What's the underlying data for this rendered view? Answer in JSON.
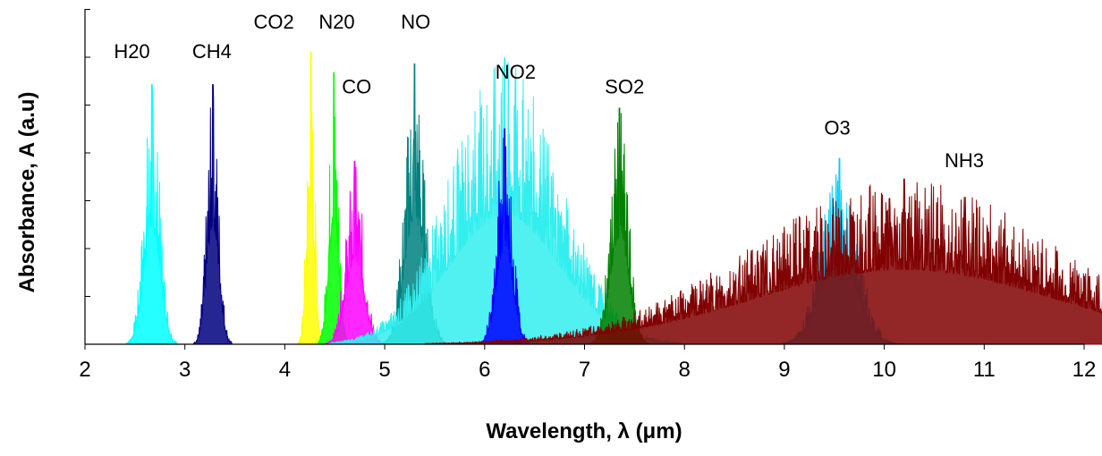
{
  "chart_data": {
    "type": "line",
    "title": "",
    "xlabel": "Wavelength, λ (μm)",
    "ylabel": "Absorbance, A (a.u)",
    "xlim": [
      2,
      12
    ],
    "ylim": [
      0,
      1
    ],
    "x_ticks": [
      "2",
      "3",
      "4",
      "5",
      "6",
      "7",
      "8",
      "9",
      "10",
      "11",
      "12"
    ],
    "grid": false,
    "legend": "none",
    "series": [
      {
        "name": "H20",
        "color": "#00FFFF",
        "center": 2.67,
        "width": 0.08,
        "peak": 0.88
      },
      {
        "name": "CH4",
        "color": "#000080",
        "center": 3.28,
        "width": 0.06,
        "peak": 0.88
      },
      {
        "name": "CO2",
        "color": "#FFFF00",
        "center": 4.26,
        "width": 0.04,
        "peak": 0.99
      },
      {
        "name": "N20",
        "color": "#00FF00",
        "center": 4.49,
        "width": 0.05,
        "peak": 0.92
      },
      {
        "name": "CO",
        "color": "#FF00FF",
        "center": 4.7,
        "width": 0.09,
        "peak": 0.62
      },
      {
        "name": "NO",
        "color": "#008080",
        "center": 5.3,
        "width": 0.1,
        "peak": 0.95
      },
      {
        "name": "NO2",
        "color": "#33EEEE",
        "center": 6.2,
        "width": 0.55,
        "peak": 0.97
      },
      {
        "name": "NO2",
        "color": "#0000FF",
        "center": 6.2,
        "width": 0.08,
        "peak": 0.73
      },
      {
        "name": "SO2",
        "color": "#008000",
        "center": 7.35,
        "width": 0.09,
        "peak": 0.8
      },
      {
        "name": "O3",
        "color": "#00CCFF",
        "center": 9.55,
        "width": 0.18,
        "peak": 0.63
      },
      {
        "name": "NH3",
        "color": "#800000",
        "center": 10.2,
        "width": 1.5,
        "peak": 0.56
      }
    ],
    "annotations": [
      {
        "text": "H20",
        "x": 2.47,
        "y": 0.97
      },
      {
        "text": "CH4",
        "x": 3.27,
        "y": 0.97
      },
      {
        "text": "CO2",
        "x": 3.89,
        "y": 1.07
      },
      {
        "text": "N20",
        "x": 4.52,
        "y": 1.07
      },
      {
        "text": "CO",
        "x": 4.72,
        "y": 0.85
      },
      {
        "text": "NO",
        "x": 5.31,
        "y": 1.07
      },
      {
        "text": "NO2",
        "x": 6.31,
        "y": 0.9
      },
      {
        "text": "SO2",
        "x": 7.4,
        "y": 0.85
      },
      {
        "text": "O3",
        "x": 9.53,
        "y": 0.71
      },
      {
        "text": "NH3",
        "x": 10.8,
        "y": 0.6
      }
    ]
  }
}
